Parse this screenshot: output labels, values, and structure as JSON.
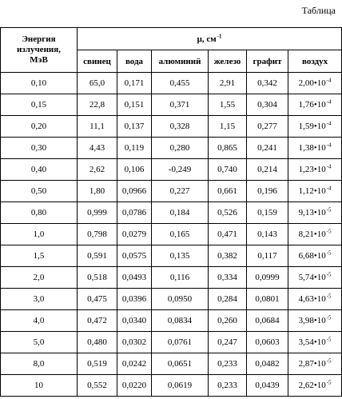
{
  "caption": "Таблица",
  "header": {
    "energy_line1": "Энергия",
    "energy_line2": "излучения,",
    "energy_line3": "МэВ",
    "mu_label": "μ, см",
    "mu_exp": "-1",
    "materials": [
      "свинец",
      "вода",
      "алюминий",
      "железо",
      "графит",
      "воздух"
    ]
  },
  "rows": [
    {
      "energy": "0,10",
      "values": [
        "65,0",
        "0,171",
        "0,455",
        "2,91",
        "0,342"
      ],
      "air_mantissa": "2,00•10",
      "air_exp": "-4"
    },
    {
      "energy": "0,15",
      "values": [
        "22,8",
        "0,151",
        "0,371",
        "1,55",
        "0,304"
      ],
      "air_mantissa": "1,76•10",
      "air_exp": "-4"
    },
    {
      "energy": "0,20",
      "values": [
        "11,1",
        "0,137",
        "0,328",
        "1,15",
        "0,277"
      ],
      "air_mantissa": "1,59•10",
      "air_exp": "-4"
    },
    {
      "energy": "0,30",
      "values": [
        "4,43",
        "0,119",
        "0,280",
        "0,865",
        "0,241"
      ],
      "air_mantissa": "1,38•10",
      "air_exp": "-4"
    },
    {
      "energy": "0,40",
      "values": [
        "2,62",
        "0,106",
        "-0,249",
        "0,740",
        "0,214"
      ],
      "air_mantissa": "1,23•10",
      "air_exp": "-4"
    },
    {
      "energy": "0,50",
      "values": [
        "1,80",
        "0,0966",
        "0,227",
        "0,661",
        "0,196"
      ],
      "air_mantissa": "1,12•10",
      "air_exp": "-4"
    },
    {
      "energy": "0,80",
      "values": [
        "0,999",
        "0,0786",
        "0,184",
        "0,526",
        "0,159"
      ],
      "air_mantissa": "9,13•10",
      "air_exp": "-5"
    },
    {
      "energy": "1,0",
      "values": [
        "0,798",
        "0,0279",
        "0,165",
        "0,471",
        "0,143"
      ],
      "air_mantissa": "8,21•10",
      "air_exp": "-5"
    },
    {
      "energy": "1,5",
      "values": [
        "0,591",
        "0,0575",
        "0,135",
        "0,382",
        "0,117"
      ],
      "air_mantissa": "6,68•10",
      "air_exp": "-5"
    },
    {
      "energy": "2,0",
      "values": [
        "0,518",
        "0,0493",
        "0,116",
        "0,334",
        "0,0999"
      ],
      "air_mantissa": "5,74•10",
      "air_exp": "-5"
    },
    {
      "energy": "3,0",
      "values": [
        "0,475",
        "0,0396",
        "0,0950",
        "0,284",
        "0,0801"
      ],
      "air_mantissa": "4,63•10",
      "air_exp": "-5"
    },
    {
      "energy": "4,0",
      "values": [
        "0,472",
        "0,0340",
        "0,0834",
        "0,260",
        "0,0684"
      ],
      "air_mantissa": "3,98•10",
      "air_exp": "-5"
    },
    {
      "energy": "5,0",
      "values": [
        "0,480",
        "0,0302",
        "0,0761",
        "0,247",
        "0,0603"
      ],
      "air_mantissa": "3,54•10",
      "air_exp": "-5"
    },
    {
      "energy": "8,0",
      "values": [
        "0,519",
        "0,0242",
        "0,0651",
        "0,233",
        "0,0482"
      ],
      "air_mantissa": "2,87•10",
      "air_exp": "-5"
    },
    {
      "energy": "10",
      "values": [
        "0,552",
        "0,0220",
        "0,0619",
        "0,233",
        "0,0439"
      ],
      "air_mantissa": "2,62•10",
      "air_exp": "-5"
    }
  ]
}
